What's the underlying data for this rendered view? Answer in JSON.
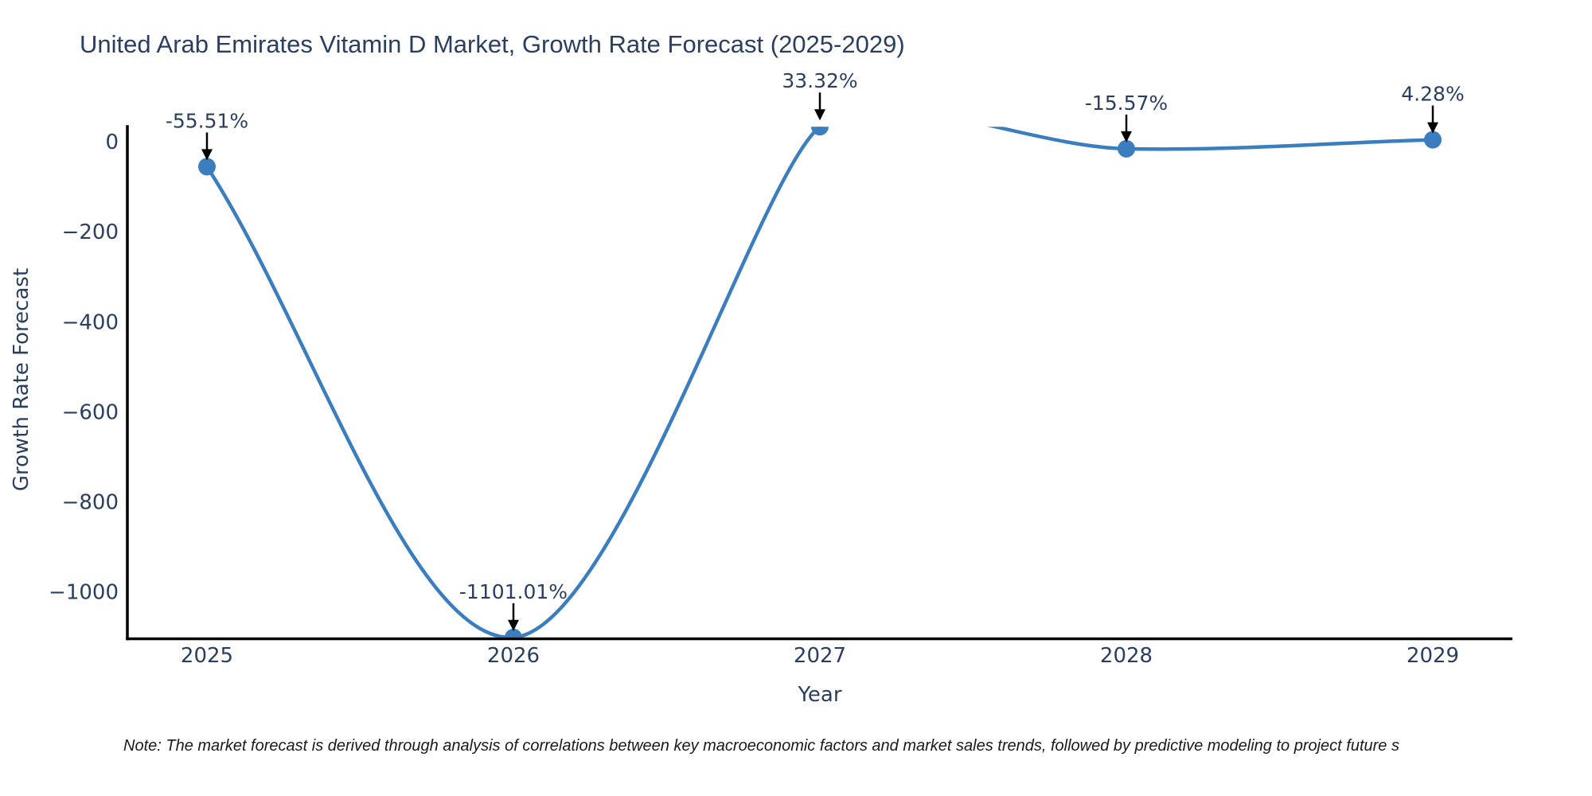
{
  "chart_data": {
    "type": "line",
    "line_shape": "spline",
    "title": "United Arab Emirates Vitamin D Market, Growth Rate Forecast (2025-2029)",
    "xlabel": "Year",
    "ylabel": "Growth Rate Forecast",
    "x": [
      "2025",
      "2026",
      "2027",
      "2028",
      "2029"
    ],
    "values": [
      -55.51,
      -1101.01,
      33.32,
      -15.57,
      4.28
    ],
    "annotations": [
      "-55.51%",
      "-1101.01%",
      "33.32%",
      "-15.57%",
      "4.28%"
    ],
    "yticks": [
      {
        "label": "0",
        "value": 0
      },
      {
        "label": "−200",
        "value": -200
      },
      {
        "label": "−400",
        "value": -400
      },
      {
        "label": "−600",
        "value": -600
      },
      {
        "label": "−800",
        "value": -800
      },
      {
        "label": "−1000",
        "value": -1000
      }
    ],
    "ylim": [
      -1101.01,
      33.32
    ],
    "grid": false,
    "legend": false,
    "colors": {
      "line": "#3a7ebf",
      "marker": "#3a7ebf",
      "axis": "#000000",
      "text": "#2a3f5f",
      "annotation_text": "#2a3f5f",
      "arrow": "#000000",
      "note_text": "#1a1a1a",
      "background": "#ffffff"
    },
    "note": "Note: The market forecast is derived through analysis of correlations between key macroeconomic factors and market sales trends, followed by predictive modeling to project future s"
  }
}
